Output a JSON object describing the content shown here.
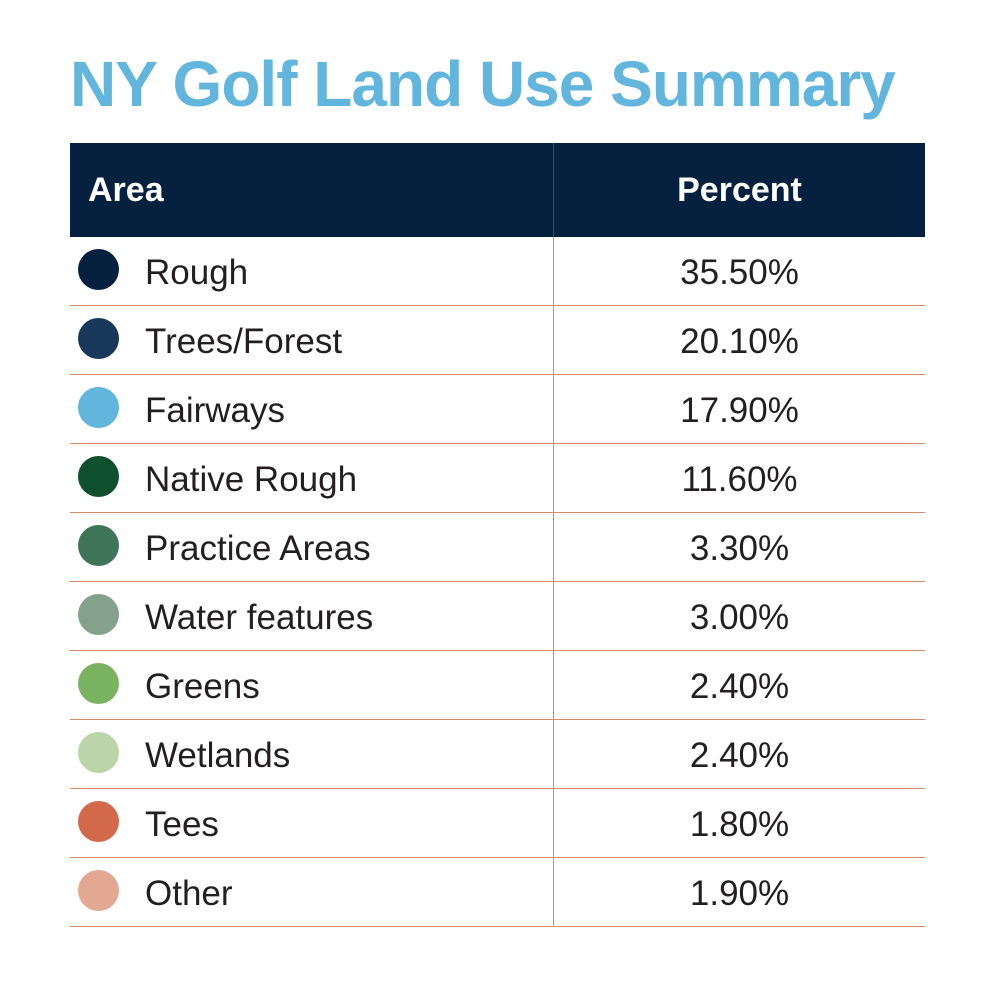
{
  "colors": {
    "title": "#62b5dc",
    "header_bg": "#05213f",
    "row_rule": "#d98a6a"
  },
  "chart_data": {
    "type": "table",
    "title": "NY Golf Land Use Summary",
    "columns": [
      "Area",
      "Percent"
    ],
    "rows": [
      {
        "area": "Rough",
        "percent": "35.50%",
        "value": 35.5,
        "color": "#05213f"
      },
      {
        "area": "Trees/Forest",
        "percent": "20.10%",
        "value": 20.1,
        "color": "#17385a"
      },
      {
        "area": "Fairways",
        "percent": "17.90%",
        "value": 17.9,
        "color": "#62b5dc"
      },
      {
        "area": "Native Rough",
        "percent": "11.60%",
        "value": 11.6,
        "color": "#0e4f2e"
      },
      {
        "area": "Practice Areas",
        "percent": "3.30%",
        "value": 3.3,
        "color": "#3e7457"
      },
      {
        "area": "Water features",
        "percent": "3.00%",
        "value": 3.0,
        "color": "#84a28b"
      },
      {
        "area": "Greens",
        "percent": "2.40%",
        "value": 2.4,
        "color": "#7ab360"
      },
      {
        "area": "Wetlands",
        "percent": "2.40%",
        "value": 2.4,
        "color": "#bcd5a8"
      },
      {
        "area": "Tees",
        "percent": "1.80%",
        "value": 1.8,
        "color": "#d2694a"
      },
      {
        "area": "Other",
        "percent": "1.90%",
        "value": 1.9,
        "color": "#e3a891"
      }
    ]
  }
}
